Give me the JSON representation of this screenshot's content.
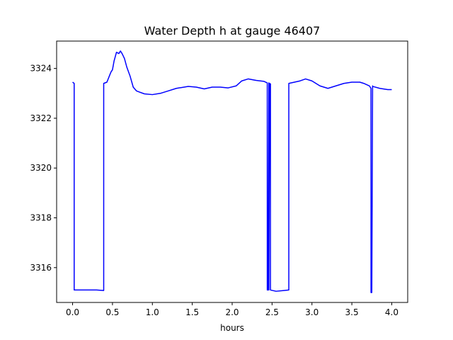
{
  "chart_data": {
    "type": "line",
    "title": "Water Depth h at gauge 46407",
    "xlabel": "hours",
    "ylabel": "",
    "xlim": [
      -0.2,
      4.2
    ],
    "ylim": [
      3314.6,
      3325.1
    ],
    "xticks": [
      0.0,
      0.5,
      1.0,
      1.5,
      2.0,
      2.5,
      3.0,
      3.5,
      4.0
    ],
    "xtick_labels": [
      "0.0",
      "0.5",
      "1.0",
      "1.5",
      "2.0",
      "2.5",
      "3.0",
      "3.5",
      "4.0"
    ],
    "yticks": [
      3316,
      3318,
      3320,
      3322,
      3324
    ],
    "ytick_labels": [
      "3316",
      "3318",
      "3320",
      "3322",
      "3324"
    ],
    "grid": false,
    "series": [
      {
        "color": "#0000ff",
        "x": [
          0.0,
          0.02,
          0.02,
          0.2,
          0.3,
          0.39,
          0.39,
          0.43,
          0.48,
          0.5,
          0.52,
          0.55,
          0.58,
          0.6,
          0.62,
          0.65,
          0.68,
          0.72,
          0.76,
          0.8,
          0.84,
          0.9,
          1.0,
          1.1,
          1.2,
          1.3,
          1.45,
          1.55,
          1.65,
          1.75,
          1.85,
          1.95,
          2.05,
          2.12,
          2.2,
          2.3,
          2.4,
          2.44,
          2.44,
          2.45,
          2.46,
          2.46,
          2.47,
          2.48,
          2.48,
          2.55,
          2.65,
          2.71,
          2.71,
          2.78,
          2.85,
          2.92,
          3.0,
          3.1,
          3.2,
          3.3,
          3.4,
          3.5,
          3.6,
          3.65,
          3.72,
          3.74,
          3.74,
          3.75,
          3.76,
          3.76,
          3.85,
          3.95,
          4.0
        ],
        "y": [
          3323.45,
          3323.4,
          3315.1,
          3315.1,
          3315.1,
          3315.08,
          3323.4,
          3323.45,
          3323.85,
          3323.95,
          3324.3,
          3324.65,
          3324.6,
          3324.7,
          3324.6,
          3324.4,
          3324.05,
          3323.7,
          3323.25,
          3323.1,
          3323.05,
          3322.98,
          3322.95,
          3323.0,
          3323.1,
          3323.2,
          3323.28,
          3323.25,
          3323.18,
          3323.25,
          3323.25,
          3323.22,
          3323.3,
          3323.5,
          3323.58,
          3323.52,
          3323.48,
          3323.42,
          3315.1,
          3315.1,
          3323.42,
          3315.1,
          3323.4,
          3323.38,
          3315.1,
          3315.05,
          3315.08,
          3315.1,
          3323.4,
          3323.45,
          3323.5,
          3323.58,
          3323.5,
          3323.3,
          3323.2,
          3323.3,
          3323.4,
          3323.45,
          3323.45,
          3323.4,
          3323.3,
          3323.2,
          3315.0,
          3315.0,
          3323.3,
          3323.28,
          3323.2,
          3323.15,
          3323.15
        ]
      }
    ]
  }
}
